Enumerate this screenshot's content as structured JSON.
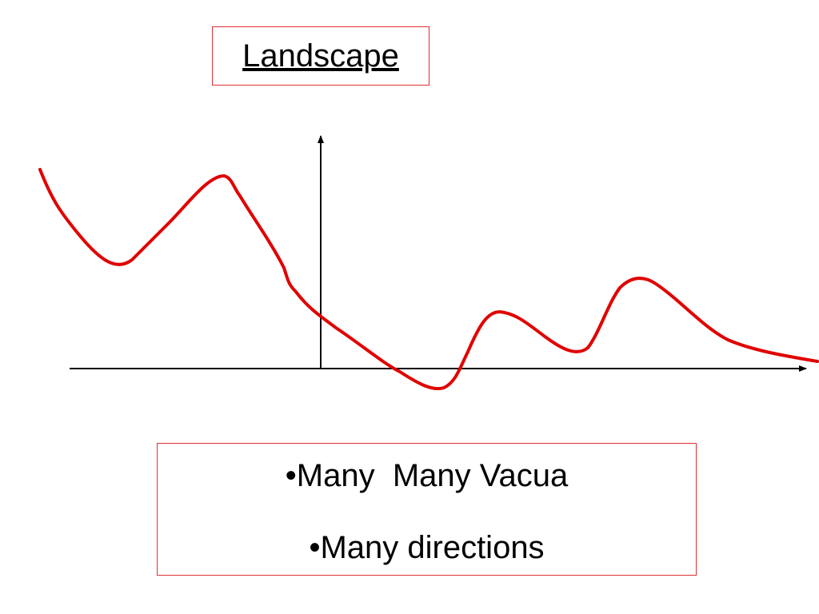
{
  "title": "Landscape",
  "bullets": [
    "•Many  Many Vacua",
    "•Many directions"
  ]
}
